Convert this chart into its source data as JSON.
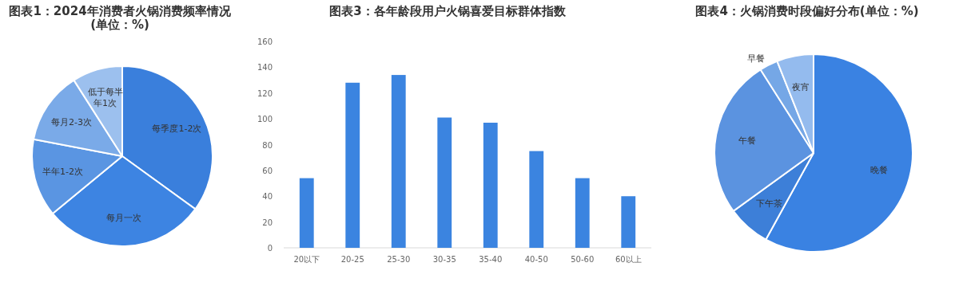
{
  "chart_data": [
    {
      "type": "pie",
      "title": "图表1：2024年消费者火锅消费频率情况(单位：%)",
      "categories": [
        "每季度1-2次",
        "每月一次",
        "半年1-2次",
        "每月2-3次",
        "低于每半年1次"
      ],
      "values": [
        35,
        29,
        14,
        13,
        9
      ],
      "colors": [
        "#3a7fdc",
        "#3d84e2",
        "#5a95e2",
        "#7aaae8",
        "#9cc0ee"
      ]
    },
    {
      "type": "bar",
      "title": "图表3：各年龄段用户火锅喜爱目标群体指数",
      "categories": [
        "20以下",
        "20-25",
        "25-30",
        "30-35",
        "35-40",
        "40-50",
        "50-60",
        "60以上"
      ],
      "values": [
        54,
        128,
        134,
        101,
        97,
        75,
        54,
        40
      ],
      "color": "#3b84e0",
      "ylim": [
        0,
        160
      ],
      "yticks": [
        0,
        20,
        40,
        60,
        80,
        100,
        120,
        140,
        160
      ],
      "grid": false
    },
    {
      "type": "pie",
      "title": "图表4：火锅消费时段偏好分布(单位：%)",
      "categories": [
        "晚餐",
        "下午茶",
        "午餐",
        "早餐",
        "夜宵"
      ],
      "values": [
        58,
        7,
        26,
        3,
        6
      ],
      "colors": [
        "#3a82e2",
        "#3d7fd8",
        "#5b93e0",
        "#75a7e6",
        "#94bbee"
      ]
    }
  ]
}
